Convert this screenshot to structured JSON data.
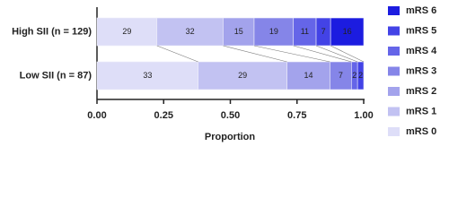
{
  "chart_data": {
    "type": "stacked-bar-percent",
    "orientation": "horizontal",
    "xlabel": "Proportion",
    "categories": [
      "High SII (n = 129)",
      "Low SII (n = 87)"
    ],
    "series": [
      {
        "name": "mRS 0",
        "color": "#dedef8",
        "values": [
          29,
          33
        ]
      },
      {
        "name": "mRS 1",
        "color": "#c2c2f2",
        "values": [
          32,
          29
        ]
      },
      {
        "name": "mRS 2",
        "color": "#a3a3ec",
        "values": [
          15,
          14
        ]
      },
      {
        "name": "mRS 3",
        "color": "#8585e8",
        "values": [
          19,
          7
        ]
      },
      {
        "name": "mRS 4",
        "color": "#6565e8",
        "values": [
          11,
          2
        ]
      },
      {
        "name": "mRS 5",
        "color": "#4343e6",
        "values": [
          7,
          2
        ]
      },
      {
        "name": "mRS 6",
        "color": "#1c1ce0",
        "values": [
          16,
          0
        ]
      }
    ],
    "xlim": [
      0,
      1
    ],
    "xticks": [
      {
        "value": 0,
        "label": "0.00"
      },
      0.25,
      {
        "value": 0.5,
        "label": "0.50"
      },
      0.75,
      {
        "value": 1,
        "label": "1.00"
      }
    ],
    "connectors": true,
    "legend": "right"
  }
}
